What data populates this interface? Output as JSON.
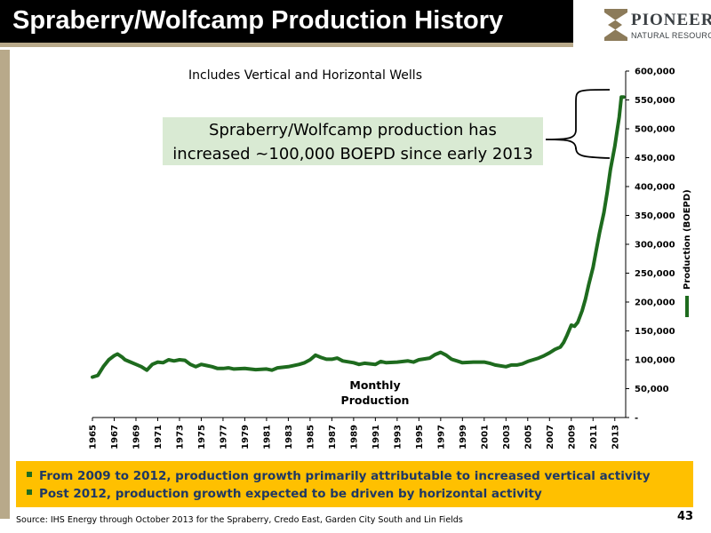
{
  "slide": {
    "title": "Spraberry/Wolfcamp Production History",
    "page_number": "43",
    "source_note": "Source: IHS Energy through October 2013 for the Spraberry, Credo East, Garden City South and Lin Fields"
  },
  "logo": {
    "name": "PIONEER",
    "subname": "NATURAL RESOURCES"
  },
  "callout": {
    "line1": "Spraberry/Wolfcamp production has",
    "line2": "increased ~100,000 BOEPD since early 2013"
  },
  "bullets": [
    "From 2009 to 2012, production growth primarily attributable to increased vertical activity",
    "Post 2012, production growth expected to be driven by horizontal activity"
  ],
  "colors": {
    "line": "#1e6b1e",
    "callout_bg": "#d9ead3",
    "bullet_bg": "#ffc000",
    "title_bg": "#000000",
    "accent": "#b8a98a"
  },
  "chart_data": {
    "type": "line",
    "subtitle": "Includes Vertical and Horizontal Wells",
    "ylabel": "Production (BOEPD)",
    "ylim": [
      0,
      600000
    ],
    "y_ticks": [
      0,
      50000,
      100000,
      150000,
      200000,
      250000,
      300000,
      350000,
      400000,
      450000,
      500000,
      550000,
      600000
    ],
    "y_tick_labels": [
      "-",
      "50,000",
      "100,000",
      "150,000",
      "200,000",
      "250,000",
      "300,000",
      "350,000",
      "400,000",
      "450,000",
      "500,000",
      "550,000",
      "600,000"
    ],
    "xlim": [
      1965,
      2014
    ],
    "x_tick_labels": [
      "1965",
      "1967",
      "1969",
      "1971",
      "1973",
      "1975",
      "1977",
      "1979",
      "1981",
      "1983",
      "1985",
      "1987",
      "1989",
      "1991",
      "1993",
      "1995",
      "1997",
      "1999",
      "2001",
      "2003",
      "2005",
      "2007",
      "2009",
      "2011",
      "2013"
    ],
    "annotation": "Monthly Production",
    "annotation_lines": [
      "Monthly",
      "Production"
    ],
    "series": [
      {
        "x": [
          1965,
          1965.5,
          1966,
          1966.5,
          1967,
          1967.3,
          1967.7,
          1968,
          1968.5,
          1969,
          1969.5,
          1970,
          1970.5,
          1971,
          1971.5,
          1972,
          1972.5,
          1973,
          1973.5,
          1974,
          1974.5,
          1975,
          1975.5,
          1976,
          1976.5,
          1977,
          1977.5,
          1978,
          1979,
          1980,
          1981,
          1981.5,
          1982,
          1983,
          1984,
          1984.5,
          1985,
          1985.5,
          1986,
          1986.5,
          1987,
          1987.5,
          1988,
          1989,
          1989.5,
          1990,
          1991,
          1991.5,
          1992,
          1993,
          1994,
          1994.5,
          1995,
          1996,
          1996.5,
          1997,
          1997.5,
          1998,
          1998.5,
          1999,
          2000,
          2001,
          2001.5,
          2002,
          2003,
          2003.5,
          2004,
          2004.5,
          2005,
          2005.5,
          2006,
          2006.5,
          2007,
          2007.5,
          2008,
          2008.3,
          2008.6,
          2009,
          2009.3,
          2009.6,
          2010,
          2010.3,
          2010.6,
          2011,
          2011.3,
          2011.6,
          2012,
          2012.3,
          2012.6,
          2013,
          2013.2,
          2013.4,
          2013.6,
          2013.8
        ],
        "y": [
          70000,
          73000,
          88000,
          100000,
          107000,
          110000,
          105000,
          100000,
          96000,
          92000,
          88000,
          82000,
          92000,
          96000,
          95000,
          100000,
          98000,
          100000,
          99000,
          92000,
          88000,
          92000,
          90000,
          88000,
          85000,
          85000,
          86000,
          84000,
          85000,
          83000,
          84000,
          82000,
          86000,
          88000,
          92000,
          95000,
          100000,
          108000,
          104000,
          101000,
          101000,
          103000,
          98000,
          95000,
          92000,
          94000,
          92000,
          97000,
          95000,
          96000,
          98000,
          96000,
          100000,
          103000,
          109000,
          113000,
          108000,
          101000,
          98000,
          95000,
          96000,
          96000,
          94000,
          91000,
          88000,
          91000,
          91000,
          93000,
          97000,
          100000,
          103000,
          107000,
          112000,
          118000,
          122000,
          130000,
          142000,
          160000,
          158000,
          165000,
          185000,
          205000,
          230000,
          260000,
          290000,
          320000,
          355000,
          390000,
          430000,
          470000,
          495000,
          520000,
          555000,
          555000
        ]
      }
    ]
  }
}
